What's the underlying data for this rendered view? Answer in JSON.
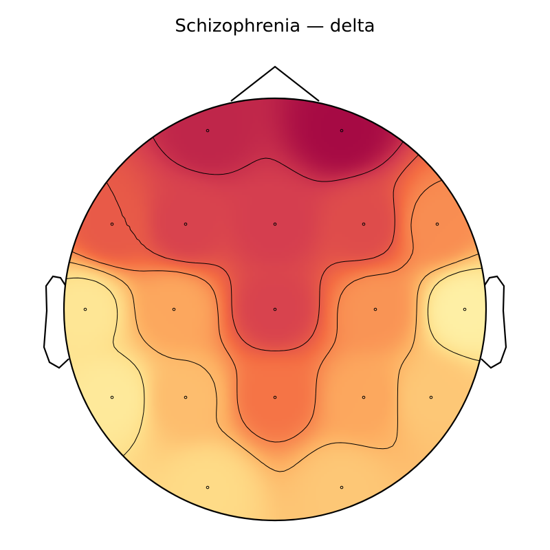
{
  "chart_data": {
    "type": "heatmap",
    "subtype": "eeg-topomap",
    "title": "Schizophrenia — delta",
    "colormap": [
      "#9e0142",
      "#d53e4f",
      "#f46d43",
      "#fdae61",
      "#fee08b",
      "#ffffbf"
    ],
    "colorbar": false,
    "contour_lines": true,
    "head_outline": true,
    "sensor_markers": true,
    "relative_value_scale": [
      0,
      1
    ],
    "channels": [
      {
        "row": 1,
        "col": 1,
        "value": 0.12
      },
      {
        "row": 1,
        "col": 2,
        "value": 0.03
      },
      {
        "row": 2,
        "col": 1,
        "value": 0.32
      },
      {
        "row": 2,
        "col": 2,
        "value": 0.22
      },
      {
        "row": 2,
        "col": 3,
        "value": 0.2
      },
      {
        "row": 2,
        "col": 4,
        "value": 0.26
      },
      {
        "row": 2,
        "col": 5,
        "value": 0.5
      },
      {
        "row": 3,
        "col": 1,
        "value": 0.84
      },
      {
        "row": 3,
        "col": 2,
        "value": 0.58
      },
      {
        "row": 3,
        "col": 3,
        "value": 0.22
      },
      {
        "row": 3,
        "col": 4,
        "value": 0.52
      },
      {
        "row": 3,
        "col": 5,
        "value": 0.9
      },
      {
        "row": 4,
        "col": 1,
        "value": 0.86
      },
      {
        "row": 4,
        "col": 2,
        "value": 0.66
      },
      {
        "row": 4,
        "col": 3,
        "value": 0.42
      },
      {
        "row": 4,
        "col": 4,
        "value": 0.58
      },
      {
        "row": 4,
        "col": 5,
        "value": 0.7
      },
      {
        "row": 5,
        "col": 1,
        "value": 0.78
      },
      {
        "row": 5,
        "col": 2,
        "value": 0.7
      }
    ]
  }
}
